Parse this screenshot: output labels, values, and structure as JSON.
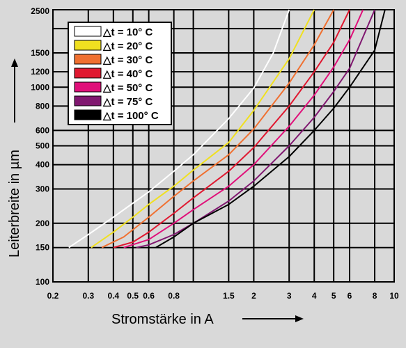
{
  "chart_data": {
    "type": "line",
    "xlabel": "Stromstärke in A",
    "ylabel": "Leiterbreite in µm",
    "x_scale": "log",
    "y_scale": "log",
    "xlim": [
      0.2,
      10
    ],
    "ylim": [
      100,
      2500
    ],
    "x_ticks": [
      0.2,
      0.3,
      0.4,
      0.5,
      0.6,
      0.8,
      1.5,
      2,
      3,
      4,
      5,
      6,
      8,
      10
    ],
    "x_tick_labels": [
      "0.2",
      "0.3",
      "0.4",
      "0.5",
      "0.6",
      "0.8",
      "1.5",
      "2",
      "3",
      "4",
      "5",
      "6",
      "8",
      "10"
    ],
    "x_grid": [
      0.2,
      0.3,
      0.4,
      0.5,
      0.6,
      0.8,
      1,
      1.5,
      2,
      3,
      4,
      5,
      6,
      8,
      10
    ],
    "y_ticks": [
      100,
      150,
      200,
      300,
      400,
      500,
      600,
      800,
      1000,
      1200,
      1500,
      2500
    ],
    "y_tick_labels": [
      "100",
      "150",
      "200",
      "300",
      "400",
      "500",
      "600",
      "800",
      "1000",
      "1200",
      "1500",
      "2500"
    ],
    "y_grid": [
      100,
      150,
      200,
      300,
      400,
      500,
      600,
      800,
      1000,
      1200,
      1500,
      2000,
      2500
    ],
    "grid": true,
    "legend_position": "top-left",
    "series": [
      {
        "name": "△t =   10° C",
        "color": "#ffffff",
        "x": [
          0.24,
          0.3,
          0.4,
          0.6,
          0.8,
          1,
          1.5,
          2,
          2.5,
          3
        ],
        "y": [
          150,
          175,
          215,
          290,
          370,
          450,
          690,
          990,
          1500,
          2500
        ]
      },
      {
        "name": "△t =   20° C",
        "color": "#f0e020",
        "x": [
          0.31,
          0.4,
          0.5,
          0.6,
          0.8,
          1,
          1.5,
          2,
          3,
          4
        ],
        "y": [
          150,
          180,
          215,
          250,
          310,
          375,
          520,
          760,
          1400,
          2500
        ]
      },
      {
        "name": "△t =   30° C",
        "color": "#f07030",
        "x": [
          0.35,
          0.45,
          0.6,
          0.8,
          1,
          1.5,
          2,
          3,
          4,
          5
        ],
        "y": [
          150,
          170,
          215,
          275,
          330,
          450,
          610,
          1050,
          1650,
          2500
        ]
      },
      {
        "name": "△t =   40° C",
        "color": "#e01830",
        "x": [
          0.4,
          0.5,
          0.6,
          0.8,
          1,
          1.5,
          2,
          3,
          4,
          5,
          6
        ],
        "y": [
          150,
          160,
          180,
          225,
          270,
          370,
          490,
          800,
          1200,
          1700,
          2500
        ]
      },
      {
        "name": "△t =   50° C",
        "color": "#e0107a",
        "x": [
          0.45,
          0.6,
          0.8,
          1,
          1.5,
          2,
          3,
          4,
          5,
          6,
          7
        ],
        "y": [
          150,
          165,
          200,
          235,
          310,
          400,
          630,
          910,
          1270,
          1750,
          2500
        ]
      },
      {
        "name": "△t =   75° C",
        "color": "#801870",
        "x": [
          0.52,
          0.6,
          0.8,
          1,
          1.5,
          2,
          3,
          4,
          5,
          6,
          8
        ],
        "y": [
          150,
          155,
          175,
          200,
          260,
          330,
          500,
          700,
          950,
          1250,
          2500
        ]
      },
      {
        "name": "△t = 100° C",
        "color": "#000000",
        "x": [
          0.65,
          0.8,
          1,
          1.5,
          2,
          3,
          4,
          5,
          6,
          8,
          9
        ],
        "y": [
          150,
          170,
          200,
          250,
          310,
          440,
          600,
          780,
          1000,
          1550,
          2500
        ]
      }
    ]
  }
}
